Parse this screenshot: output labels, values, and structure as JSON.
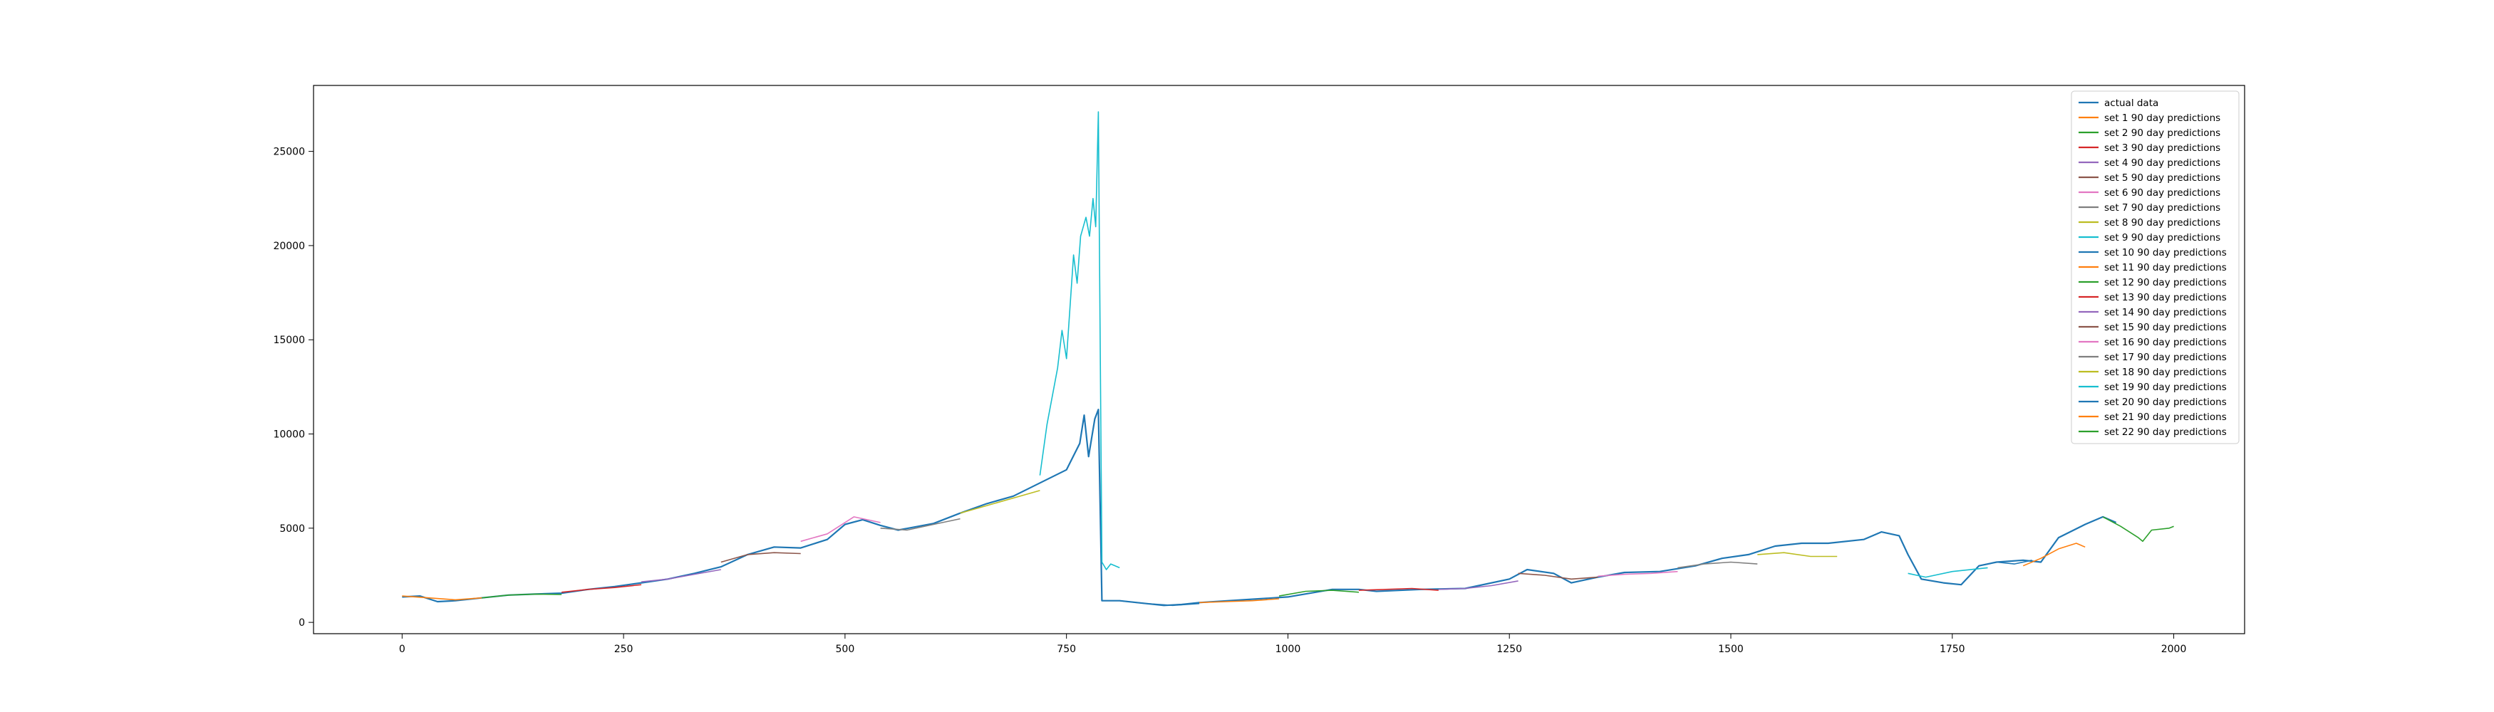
{
  "chart_data": {
    "type": "line",
    "title": "",
    "xlabel": "",
    "ylabel": "",
    "xlim": [
      -100,
      2080
    ],
    "ylim": [
      -600,
      28500
    ],
    "xticks": [
      0,
      250,
      500,
      750,
      1000,
      1250,
      1500,
      1750,
      2000
    ],
    "yticks": [
      0,
      5000,
      10000,
      15000,
      20000,
      25000
    ],
    "grid": false,
    "legend_position": "top-right",
    "series": [
      {
        "name": "actual data",
        "color": "#1f77b4",
        "points": [
          [
            0,
            1350
          ],
          [
            20,
            1400
          ],
          [
            40,
            1100
          ],
          [
            60,
            1150
          ],
          [
            90,
            1300
          ],
          [
            120,
            1450
          ],
          [
            150,
            1500
          ],
          [
            180,
            1550
          ],
          [
            210,
            1750
          ],
          [
            240,
            1900
          ],
          [
            270,
            2100
          ],
          [
            300,
            2300
          ],
          [
            330,
            2600
          ],
          [
            360,
            2950
          ],
          [
            390,
            3600
          ],
          [
            420,
            4000
          ],
          [
            450,
            3950
          ],
          [
            480,
            4400
          ],
          [
            500,
            5200
          ],
          [
            520,
            5450
          ],
          [
            540,
            5150
          ],
          [
            560,
            4900
          ],
          [
            600,
            5250
          ],
          [
            630,
            5800
          ],
          [
            660,
            6300
          ],
          [
            690,
            6700
          ],
          [
            720,
            7400
          ],
          [
            750,
            8100
          ],
          [
            765,
            9500
          ],
          [
            770,
            11000
          ],
          [
            775,
            8800
          ],
          [
            782,
            10800
          ],
          [
            786,
            11300
          ],
          [
            790,
            1150
          ],
          [
            810,
            1150
          ],
          [
            840,
            1000
          ],
          [
            860,
            900
          ],
          [
            880,
            950
          ],
          [
            900,
            1050
          ],
          [
            950,
            1200
          ],
          [
            1000,
            1350
          ],
          [
            1050,
            1750
          ],
          [
            1080,
            1750
          ],
          [
            1100,
            1650
          ],
          [
            1150,
            1750
          ],
          [
            1200,
            1800
          ],
          [
            1250,
            2300
          ],
          [
            1270,
            2800
          ],
          [
            1300,
            2600
          ],
          [
            1320,
            2100
          ],
          [
            1350,
            2400
          ],
          [
            1380,
            2650
          ],
          [
            1420,
            2700
          ],
          [
            1460,
            3000
          ],
          [
            1490,
            3400
          ],
          [
            1520,
            3600
          ],
          [
            1550,
            4050
          ],
          [
            1580,
            4200
          ],
          [
            1610,
            4200
          ],
          [
            1650,
            4400
          ],
          [
            1670,
            4800
          ],
          [
            1690,
            4600
          ],
          [
            1700,
            3600
          ],
          [
            1715,
            2300
          ],
          [
            1740,
            2100
          ],
          [
            1760,
            2000
          ],
          [
            1780,
            3000
          ],
          [
            1800,
            3200
          ],
          [
            1830,
            3300
          ],
          [
            1850,
            3200
          ],
          [
            1870,
            4500
          ],
          [
            1900,
            5200
          ],
          [
            1920,
            5600
          ],
          [
            1935,
            5300
          ]
        ]
      },
      {
        "name": "set 1 90 day predictions",
        "color": "#ff7f0e",
        "points": [
          [
            0,
            1400
          ],
          [
            30,
            1300
          ],
          [
            60,
            1200
          ],
          [
            90,
            1300
          ]
        ]
      },
      {
        "name": "set 2 90 day predictions",
        "color": "#2ca02c",
        "points": [
          [
            90,
            1300
          ],
          [
            120,
            1450
          ],
          [
            150,
            1500
          ],
          [
            180,
            1480
          ]
        ]
      },
      {
        "name": "set 3 90 day predictions",
        "color": "#d62728",
        "points": [
          [
            180,
            1600
          ],
          [
            210,
            1750
          ],
          [
            240,
            1850
          ],
          [
            270,
            2000
          ]
        ]
      },
      {
        "name": "set 4 90 day predictions",
        "color": "#9467bd",
        "points": [
          [
            270,
            2150
          ],
          [
            300,
            2300
          ],
          [
            330,
            2550
          ],
          [
            360,
            2800
          ]
        ]
      },
      {
        "name": "set 5 90 day predictions",
        "color": "#8c564b",
        "points": [
          [
            360,
            3200
          ],
          [
            390,
            3600
          ],
          [
            420,
            3700
          ],
          [
            450,
            3650
          ]
        ]
      },
      {
        "name": "set 6 90 day predictions",
        "color": "#e377c2",
        "points": [
          [
            450,
            4300
          ],
          [
            480,
            4700
          ],
          [
            510,
            5600
          ],
          [
            540,
            5300
          ]
        ]
      },
      {
        "name": "set 7 90 day predictions",
        "color": "#7f7f7f",
        "points": [
          [
            540,
            5000
          ],
          [
            570,
            4900
          ],
          [
            600,
            5200
          ],
          [
            630,
            5500
          ]
        ]
      },
      {
        "name": "set 8 90 day predictions",
        "color": "#bcbd22",
        "points": [
          [
            630,
            5800
          ],
          [
            660,
            6200
          ],
          [
            690,
            6600
          ],
          [
            720,
            7000
          ]
        ]
      },
      {
        "name": "set 9 90 day predictions",
        "color": "#17becf",
        "points": [
          [
            720,
            7800
          ],
          [
            728,
            10500
          ],
          [
            740,
            13500
          ],
          [
            745,
            15500
          ],
          [
            750,
            14000
          ],
          [
            758,
            19500
          ],
          [
            762,
            18000
          ],
          [
            766,
            20500
          ],
          [
            772,
            21500
          ],
          [
            776,
            20500
          ],
          [
            780,
            22500
          ],
          [
            783,
            21000
          ],
          [
            786,
            27100
          ],
          [
            790,
            3200
          ],
          [
            795,
            2800
          ],
          [
            800,
            3100
          ],
          [
            810,
            2900
          ]
        ]
      },
      {
        "name": "set 10 90 day predictions",
        "color": "#1f77b4",
        "points": [
          [
            810,
            1150
          ],
          [
            840,
            1000
          ],
          [
            870,
            900
          ],
          [
            900,
            1000
          ]
        ]
      },
      {
        "name": "set 11 90 day predictions",
        "color": "#ff7f0e",
        "points": [
          [
            900,
            1050
          ],
          [
            930,
            1100
          ],
          [
            960,
            1150
          ],
          [
            990,
            1250
          ]
        ]
      },
      {
        "name": "set 12 90 day predictions",
        "color": "#2ca02c",
        "points": [
          [
            990,
            1400
          ],
          [
            1020,
            1650
          ],
          [
            1050,
            1700
          ],
          [
            1080,
            1600
          ]
        ]
      },
      {
        "name": "set 13 90 day predictions",
        "color": "#d62728",
        "points": [
          [
            1080,
            1700
          ],
          [
            1110,
            1750
          ],
          [
            1140,
            1800
          ],
          [
            1170,
            1700
          ]
        ]
      },
      {
        "name": "set 14 90 day predictions",
        "color": "#9467bd",
        "points": [
          [
            1170,
            1750
          ],
          [
            1200,
            1800
          ],
          [
            1230,
            1950
          ],
          [
            1260,
            2200
          ]
        ]
      },
      {
        "name": "set 15 90 day predictions",
        "color": "#8c564b",
        "points": [
          [
            1260,
            2600
          ],
          [
            1290,
            2500
          ],
          [
            1320,
            2300
          ],
          [
            1350,
            2400
          ]
        ]
      },
      {
        "name": "set 16 90 day predictions",
        "color": "#e377c2",
        "points": [
          [
            1350,
            2450
          ],
          [
            1380,
            2550
          ],
          [
            1410,
            2600
          ],
          [
            1440,
            2700
          ]
        ]
      },
      {
        "name": "set 17 90 day predictions",
        "color": "#7f7f7f",
        "points": [
          [
            1440,
            2900
          ],
          [
            1470,
            3100
          ],
          [
            1500,
            3200
          ],
          [
            1530,
            3100
          ]
        ]
      },
      {
        "name": "set 18 90 day predictions",
        "color": "#bcbd22",
        "points": [
          [
            1530,
            3600
          ],
          [
            1560,
            3700
          ],
          [
            1590,
            3500
          ],
          [
            1620,
            3500
          ]
        ]
      },
      {
        "name": "set 19 90 day predictions",
        "color": "#17becf",
        "points": [
          [
            1700,
            2600
          ],
          [
            1720,
            2400
          ],
          [
            1750,
            2700
          ],
          [
            1790,
            2900
          ]
        ]
      },
      {
        "name": "set 20 90 day predictions",
        "color": "#1f77b4",
        "points": [
          [
            1780,
            3000
          ],
          [
            1800,
            3200
          ],
          [
            1820,
            3100
          ],
          [
            1840,
            3300
          ]
        ]
      },
      {
        "name": "set 21 90 day predictions",
        "color": "#ff7f0e",
        "points": [
          [
            1830,
            3000
          ],
          [
            1850,
            3400
          ],
          [
            1870,
            3900
          ],
          [
            1890,
            4200
          ],
          [
            1900,
            4000
          ]
        ]
      },
      {
        "name": "set 22 90 day predictions",
        "color": "#2ca02c",
        "points": [
          [
            1920,
            5600
          ],
          [
            1940,
            5100
          ],
          [
            1960,
            4500
          ],
          [
            1965,
            4300
          ],
          [
            1975,
            4900
          ],
          [
            1995,
            5000
          ],
          [
            2000,
            5100
          ]
        ]
      }
    ]
  }
}
